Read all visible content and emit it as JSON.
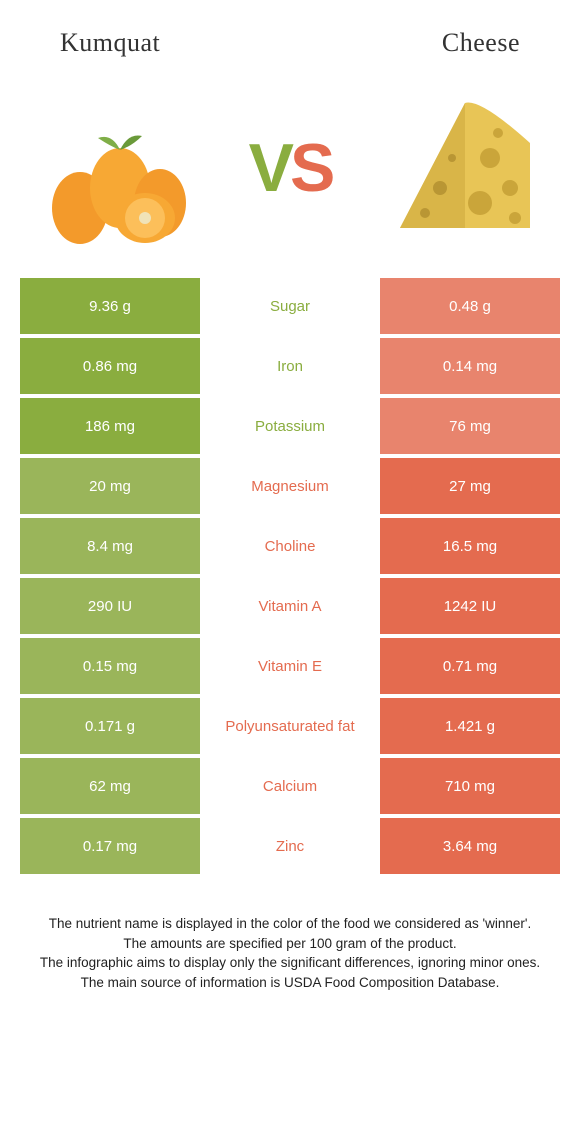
{
  "colors": {
    "left": "#8aad3f",
    "right": "#e46b4f",
    "leftDim": "#9ab55a",
    "rightDim": "#e8846d",
    "bg": "#ffffff",
    "text": "#333333"
  },
  "header": {
    "leftTitle": "Kumquat",
    "rightTitle": "Cheese"
  },
  "vs": {
    "v": "V",
    "s": "S"
  },
  "rows": [
    {
      "left": "9.36 g",
      "label": "Sugar",
      "right": "0.48 g",
      "winner": "left"
    },
    {
      "left": "0.86 mg",
      "label": "Iron",
      "right": "0.14 mg",
      "winner": "left"
    },
    {
      "left": "186 mg",
      "label": "Potassium",
      "right": "76 mg",
      "winner": "left"
    },
    {
      "left": "20 mg",
      "label": "Magnesium",
      "right": "27 mg",
      "winner": "right"
    },
    {
      "left": "8.4 mg",
      "label": "Choline",
      "right": "16.5 mg",
      "winner": "right"
    },
    {
      "left": "290 IU",
      "label": "Vitamin A",
      "right": "1242 IU",
      "winner": "right"
    },
    {
      "left": "0.15 mg",
      "label": "Vitamin E",
      "right": "0.71 mg",
      "winner": "right"
    },
    {
      "left": "0.171 g",
      "label": "Polyunsaturated fat",
      "right": "1.421 g",
      "winner": "right"
    },
    {
      "left": "62 mg",
      "label": "Calcium",
      "right": "710 mg",
      "winner": "right"
    },
    {
      "left": "0.17 mg",
      "label": "Zinc",
      "right": "3.64 mg",
      "winner": "right"
    }
  ],
  "footer": {
    "l1": "The nutrient name is displayed in the color of the food we considered as 'winner'.",
    "l2": "The amounts are specified per 100 gram of the product.",
    "l3": "The infographic aims to display only the significant differences, ignoring minor ones.",
    "l4": "The main source of information is USDA Food Composition Database."
  }
}
